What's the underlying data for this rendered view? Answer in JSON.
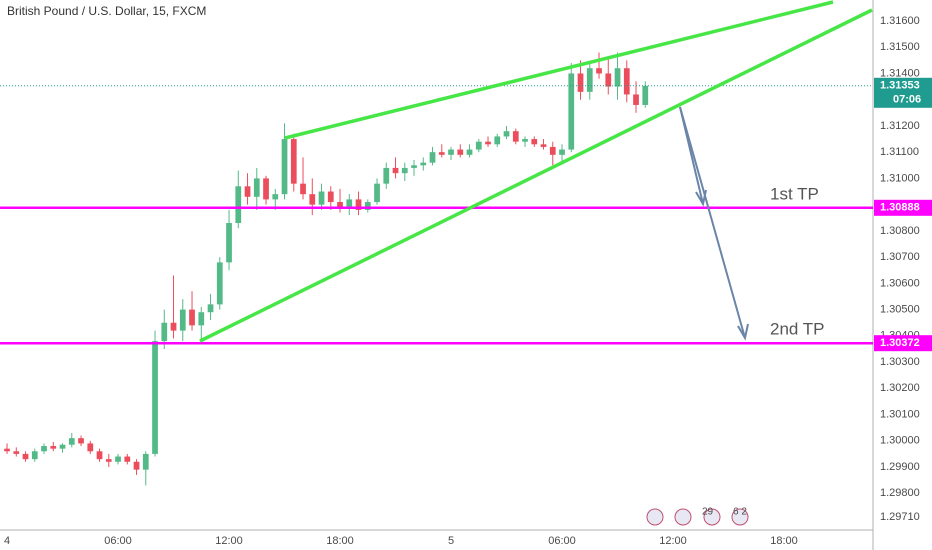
{
  "chart_data": {
    "type": "candlestick",
    "title": "British Pound / U.S. Dollar, 15, FXCM",
    "up_color": "#53b987",
    "down_color": "#eb4d5c",
    "x": [
      0,
      0.5,
      1,
      1.5,
      2,
      2.5,
      3,
      3.5,
      4,
      4.5,
      5,
      5.5,
      6,
      6.5,
      7,
      7.5,
      8,
      8.5,
      9,
      9.5,
      10,
      10.5,
      11,
      11.5,
      12,
      12.5,
      13,
      13.5,
      14,
      14.5,
      15,
      15.5,
      16,
      16.5,
      17,
      17.5,
      18,
      18.5,
      19,
      19.5,
      20,
      20.5,
      21,
      21.5,
      22,
      22.5,
      23,
      23.5,
      24,
      24.5,
      25,
      25.5,
      26,
      26.5,
      27,
      27.5,
      28,
      28.5,
      29,
      29.5,
      30,
      30.5,
      31,
      31.5,
      32,
      32.5,
      33,
      33.5,
      34,
      34.5
    ],
    "open": [
      1.2997,
      1.2996,
      1.2995,
      1.2993,
      1.2996,
      1.2998,
      1.2997,
      1.29985,
      1.3001,
      1.2999,
      1.2996,
      1.2993,
      1.2992,
      1.2994,
      1.2992,
      1.2989,
      1.2995,
      1.3038,
      1.3045,
      1.3042,
      1.305,
      1.3044,
      1.3049,
      1.3052,
      1.3068,
      1.3083,
      1.3097,
      1.3093,
      1.31,
      1.3092,
      1.3094,
      1.3115,
      1.3098,
      1.3094,
      1.309,
      1.3095,
      1.3091,
      1.3089,
      1.3092,
      1.3088,
      1.3091,
      1.3098,
      1.3104,
      1.3102,
      1.3104,
      1.3105,
      1.3106,
      1.311,
      1.3109,
      1.3111,
      1.3109,
      1.3111,
      1.3114,
      1.3113,
      1.3116,
      1.3118,
      1.3114,
      1.3115,
      1.3113,
      1.3112,
      1.3109,
      1.3111,
      1.314,
      1.3133,
      1.3142,
      1.314,
      1.3135,
      1.3142,
      1.3132,
      1.3128
    ],
    "high": [
      1.2999,
      1.29975,
      1.2996,
      1.2997,
      1.2999,
      1.29995,
      1.2999,
      1.3003,
      1.3002,
      1.3,
      1.2997,
      1.2995,
      1.2995,
      1.2995,
      1.2993,
      1.2996,
      1.3042,
      1.305,
      1.3063,
      1.3054,
      1.3057,
      1.3051,
      1.3056,
      1.307,
      1.3088,
      1.3103,
      1.3102,
      1.3104,
      1.3101,
      1.3096,
      1.3121,
      1.3117,
      1.3108,
      1.31,
      1.3098,
      1.3097,
      1.3096,
      1.3094,
      1.3095,
      1.3092,
      1.31,
      1.3106,
      1.3108,
      1.3106,
      1.3107,
      1.3108,
      1.3112,
      1.3113,
      1.3112,
      1.3113,
      1.3113,
      1.3115,
      1.3116,
      1.3117,
      1.312,
      1.3119,
      1.3116,
      1.3116,
      1.3115,
      1.3114,
      1.3113,
      1.3144,
      1.3145,
      1.3144,
      1.3148,
      1.3146,
      1.3148,
      1.3145,
      1.3137,
      1.3137
    ],
    "low": [
      1.2995,
      1.2994,
      1.2992,
      1.2992,
      1.2995,
      1.2996,
      1.29955,
      1.29975,
      1.2998,
      1.2995,
      1.2992,
      1.299,
      1.2991,
      1.2991,
      1.2987,
      1.2983,
      1.2994,
      1.3035,
      1.3039,
      1.3038,
      1.3042,
      1.3038,
      1.3046,
      1.305,
      1.3065,
      1.3081,
      1.309,
      1.3088,
      1.309,
      1.3088,
      1.3092,
      1.3095,
      1.3092,
      1.3086,
      1.3088,
      1.3088,
      1.3087,
      1.3086,
      1.3086,
      1.3087,
      1.309,
      1.3096,
      1.31,
      1.3099,
      1.3101,
      1.3103,
      1.3105,
      1.3108,
      1.3107,
      1.3108,
      1.3108,
      1.311,
      1.3112,
      1.3112,
      1.3115,
      1.3113,
      1.3112,
      1.3112,
      1.3111,
      1.3105,
      1.3106,
      1.311,
      1.313,
      1.313,
      1.3138,
      1.3132,
      1.313,
      1.3129,
      1.3125,
      1.3127
    ],
    "close": [
      1.2996,
      1.2995,
      1.2993,
      1.2996,
      1.2998,
      1.2997,
      1.29985,
      1.3001,
      1.2999,
      1.2996,
      1.2993,
      1.2992,
      1.2994,
      1.2992,
      1.2989,
      1.2995,
      1.3038,
      1.3045,
      1.3042,
      1.305,
      1.3044,
      1.3049,
      1.3052,
      1.3068,
      1.3083,
      1.3097,
      1.3093,
      1.31,
      1.3092,
      1.3094,
      1.3115,
      1.3098,
      1.3094,
      1.309,
      1.3095,
      1.3091,
      1.3089,
      1.3092,
      1.3088,
      1.3091,
      1.3098,
      1.3104,
      1.3102,
      1.3104,
      1.3105,
      1.3106,
      1.311,
      1.3109,
      1.3111,
      1.3109,
      1.3111,
      1.3114,
      1.3113,
      1.3116,
      1.3118,
      1.3114,
      1.3115,
      1.3113,
      1.3112,
      1.3109,
      1.3111,
      1.314,
      1.3133,
      1.3142,
      1.314,
      1.3135,
      1.3142,
      1.3132,
      1.3128,
      1.31353
    ],
    "xlim": [
      -0.38,
      46.81
    ],
    "ylim": [
      1.2966,
      1.3168
    ],
    "xticks": [
      {
        "value": 0,
        "label": "4"
      },
      {
        "value": 6,
        "label": "06:00"
      },
      {
        "value": 12,
        "label": "12:00"
      },
      {
        "value": 18,
        "label": "18:00"
      },
      {
        "value": 24,
        "label": "5"
      },
      {
        "value": 30,
        "label": "06:00"
      },
      {
        "value": 36,
        "label": "12:00"
      },
      {
        "value": 42,
        "label": "18:00"
      }
    ],
    "yticks": [
      {
        "value": 1.316,
        "label": "1.31600"
      },
      {
        "value": 1.315,
        "label": "1.31500"
      },
      {
        "value": 1.314,
        "label": "1.31400"
      },
      {
        "value": 1.312,
        "label": "1.31200"
      },
      {
        "value": 1.311,
        "label": "1.31100"
      },
      {
        "value": 1.31,
        "label": "1.31000"
      },
      {
        "value": 1.308,
        "label": "1.30800"
      },
      {
        "value": 1.307,
        "label": "1.30700"
      },
      {
        "value": 1.306,
        "label": "1.30600"
      },
      {
        "value": 1.305,
        "label": "1.30500"
      },
      {
        "value": 1.304,
        "label": "1.30400"
      },
      {
        "value": 1.303,
        "label": "1.30300"
      },
      {
        "value": 1.302,
        "label": "1.30200"
      },
      {
        "value": 1.301,
        "label": "1.30100"
      },
      {
        "value": 1.3,
        "label": "1.30000"
      },
      {
        "value": 1.299,
        "label": "1.29900"
      },
      {
        "value": 1.298,
        "label": "1.29800"
      },
      {
        "value": 1.2971,
        "label": "1.29710"
      }
    ],
    "grid": false,
    "hlines": [
      {
        "value": 1.30888,
        "label": "1.30888",
        "text": "1st TP"
      },
      {
        "value": 1.30372,
        "label": "1.30372",
        "text": "2nd TP"
      }
    ],
    "hline_color": "#ff00ff",
    "last_price": {
      "value": 1.31353,
      "label": "1.31353",
      "countdown": "07:06",
      "color": "#1f9c8f"
    },
    "events": [
      "29",
      "6 2"
    ]
  }
}
